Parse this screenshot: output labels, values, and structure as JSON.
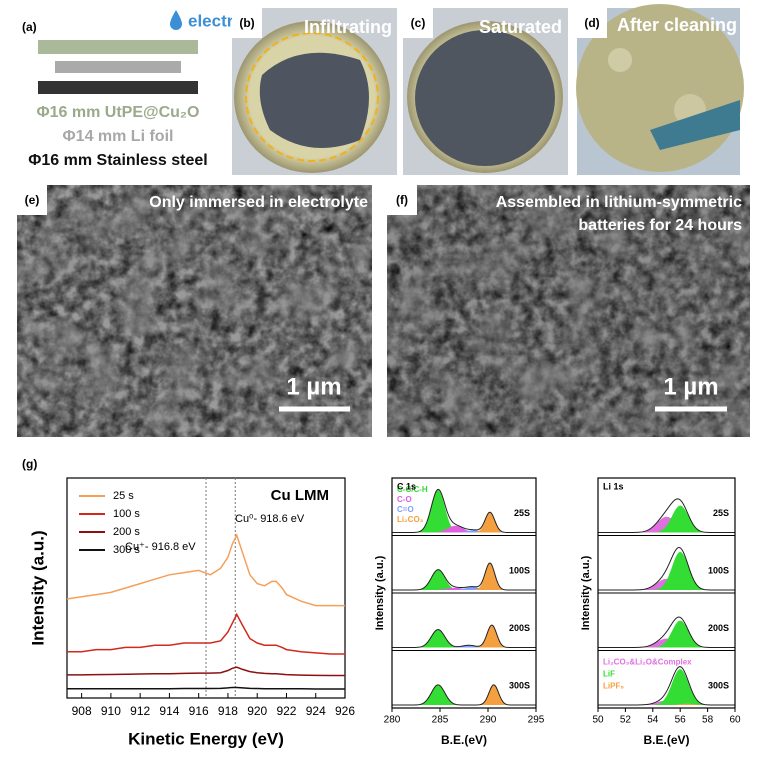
{
  "panels": {
    "a": {
      "label": "(a)",
      "drop": "electrolyte",
      "layers": [
        "Φ16 mm UtPE@Cu₂O",
        "Φ14 mm Li foil",
        "Φ16 mm Stainless steel"
      ]
    },
    "b": {
      "label": "(b)",
      "caption": "Infiltrating"
    },
    "c": {
      "label": "(c)",
      "caption": "Saturated"
    },
    "d": {
      "label": "(d)",
      "caption": "After cleaning"
    },
    "e": {
      "label": "(e)",
      "caption": "Only immersed in electrolyte",
      "scale": "1 µm"
    },
    "f": {
      "label": "(f)",
      "caption": [
        "Assembled in lithium-symmetric",
        "batteries for 24 hours"
      ],
      "scale": "1 µm"
    },
    "g": {
      "label": "(g)"
    }
  },
  "chart_data": [
    {
      "type": "line",
      "title": "Cu LMM",
      "xlabel": "Kinetic Energy (eV)",
      "ylabel": "Intensity (a.u.)",
      "annotations": [
        "Cu⁺- 916.8 eV",
        "Cu⁰- 918.6 eV"
      ],
      "vlines": [
        916.5,
        918.5
      ],
      "xlim": [
        907,
        926
      ],
      "xticks": [
        908,
        910,
        912,
        914,
        916,
        918,
        920,
        922,
        924,
        926
      ],
      "ylim": [
        0,
        100
      ],
      "x": [
        907,
        908,
        909,
        910,
        911,
        912,
        913,
        914,
        915,
        916,
        916.8,
        917.5,
        918,
        918.3,
        918.6,
        919,
        919.5,
        920,
        920.5,
        921,
        921.3,
        921.7,
        922,
        923,
        924,
        925,
        926
      ],
      "series": [
        {
          "name": "25 s",
          "color": "#f5a05a",
          "values": [
            45,
            46,
            47,
            48,
            50,
            52,
            54,
            56,
            57,
            58,
            56,
            59,
            64,
            70,
            74,
            66,
            56,
            52,
            51,
            53,
            53,
            50,
            47,
            44,
            42,
            42,
            42
          ]
        },
        {
          "name": "100 s",
          "color": "#d02a1c",
          "values": [
            21,
            21,
            22,
            22,
            23,
            23,
            24,
            24,
            25,
            25,
            25,
            26,
            30,
            34,
            38,
            33,
            27,
            25,
            24,
            24,
            24,
            23,
            22,
            21,
            20.5,
            20,
            20
          ]
        },
        {
          "name": "200 s",
          "color": "#8b1010",
          "values": [
            10.5,
            10.5,
            10.6,
            10.7,
            10.8,
            10.9,
            11,
            11,
            11.2,
            11.3,
            11.3,
            11.5,
            12.5,
            13.5,
            14,
            13,
            12,
            11.5,
            11.2,
            11,
            11,
            10.8,
            10.6,
            10.4,
            10.3,
            10.2,
            10.2
          ]
        },
        {
          "name": "300 s",
          "color": "#111111",
          "values": [
            4.2,
            4.2,
            4.2,
            4.2,
            4.2,
            4.2,
            4.2,
            4.2,
            4.3,
            4.3,
            4.3,
            4.4,
            4.6,
            4.8,
            4.8,
            4.6,
            4.4,
            4.3,
            4.2,
            4.2,
            4.2,
            4.2,
            4.2,
            4.2,
            4.1,
            4.1,
            4.1
          ]
        }
      ]
    },
    {
      "type": "peak-fit",
      "title": "C 1s",
      "xlabel": "B.E.(eV)",
      "ylabel": "Intensity (a.u.)",
      "xlim": [
        280,
        295
      ],
      "xticks": [
        280,
        285,
        290,
        295
      ],
      "components": [
        {
          "name": "C-C/C-H",
          "color": "#33dd33"
        },
        {
          "name": "C-O",
          "color": "#e060e0"
        },
        {
          "name": "C=O",
          "color": "#7fa0ff"
        },
        {
          "name": "Li₂CO₃",
          "color": "#f5a040"
        }
      ],
      "panels": [
        {
          "label": "25S",
          "peaks": [
            {
              "center": 284.8,
              "height": 0.95,
              "width": 0.7
            },
            {
              "center": 286.6,
              "height": 0.15,
              "width": 0.8
            },
            {
              "center": 288.5,
              "height": 0.05,
              "width": 0.7
            },
            {
              "center": 290.2,
              "height": 0.45,
              "width": 0.5
            }
          ]
        },
        {
          "label": "100S",
          "peaks": [
            {
              "center": 284.8,
              "height": 0.45,
              "width": 0.7
            },
            {
              "center": 286.6,
              "height": 0.05,
              "width": 0.8
            },
            {
              "center": 288.4,
              "height": 0.07,
              "width": 0.7
            },
            {
              "center": 290.2,
              "height": 0.6,
              "width": 0.5
            }
          ]
        },
        {
          "label": "200S",
          "peaks": [
            {
              "center": 284.8,
              "height": 0.4,
              "width": 0.7
            },
            null,
            {
              "center": 288,
              "height": 0.05,
              "width": 0.7
            },
            {
              "center": 290.4,
              "height": 0.5,
              "width": 0.5
            }
          ]
        },
        {
          "label": "300S",
          "peaks": [
            {
              "center": 284.8,
              "height": 0.45,
              "width": 0.7
            },
            null,
            null,
            {
              "center": 290.6,
              "height": 0.45,
              "width": 0.5
            }
          ]
        }
      ]
    },
    {
      "type": "peak-fit",
      "title": "Li 1s",
      "xlabel": "B.E.(eV)",
      "ylabel": "Intensity (a.u.)",
      "xlim": [
        50,
        60
      ],
      "xticks": [
        50,
        52,
        54,
        56,
        58,
        60
      ],
      "components": [
        {
          "name": "Li₂CO₃&Li₂O&Complex",
          "color": "#e070e0"
        },
        {
          "name": "LiF",
          "color": "#33dd33"
        },
        {
          "name": "LiPF₆",
          "color": "#f5a040"
        }
      ],
      "panels": [
        {
          "label": "25S",
          "peaks": [
            {
              "center": 55,
              "height": 0.35,
              "width": 0.7
            },
            {
              "center": 56,
              "height": 0.6,
              "width": 0.6
            },
            null
          ]
        },
        {
          "label": "100S",
          "peaks": [
            {
              "center": 55,
              "height": 0.25,
              "width": 0.7
            },
            {
              "center": 56,
              "height": 0.85,
              "width": 0.6
            },
            null
          ]
        },
        {
          "label": "200S",
          "peaks": [
            {
              "center": 55,
              "height": 0.2,
              "width": 0.7
            },
            {
              "center": 56,
              "height": 0.6,
              "width": 0.6
            },
            null
          ]
        },
        {
          "label": "300S",
          "peaks": [
            {
              "center": 55,
              "height": 0.1,
              "width": 0.7
            },
            {
              "center": 56,
              "height": 0.8,
              "width": 0.6
            },
            {
              "center": 56.5,
              "height": 0.03,
              "width": 0.5
            }
          ]
        }
      ]
    }
  ]
}
